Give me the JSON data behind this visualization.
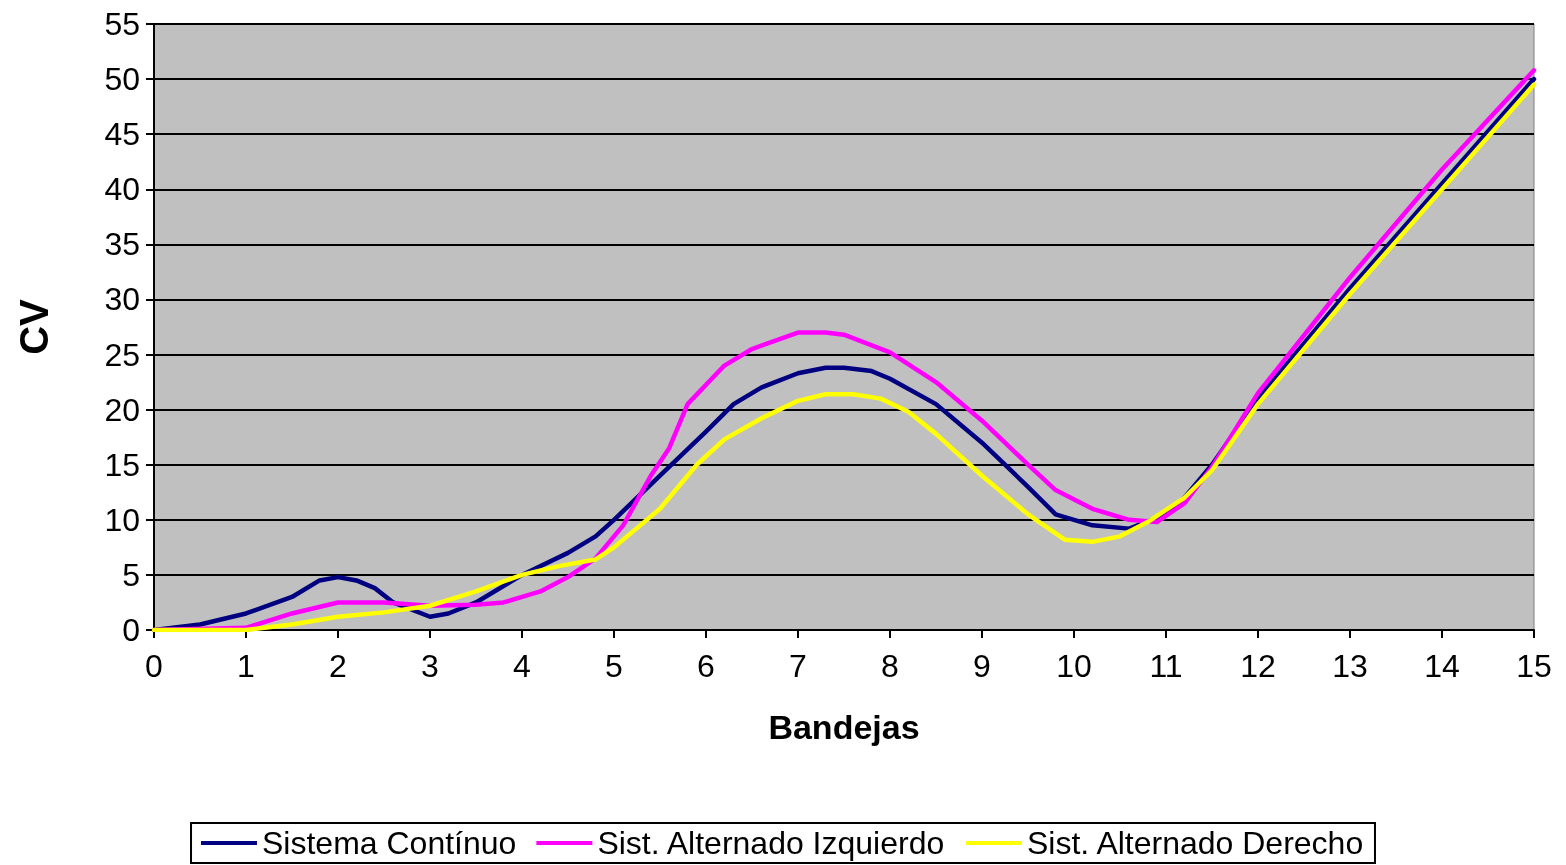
{
  "chart_data": {
    "type": "line",
    "xlabel": "Bandejas",
    "ylabel": "CV",
    "xlim": [
      0,
      15
    ],
    "xticks": [
      0,
      1,
      2,
      3,
      4,
      5,
      6,
      7,
      8,
      9,
      10,
      11,
      12,
      13,
      14,
      15
    ],
    "ylim": [
      0,
      55
    ],
    "yticks": [
      0,
      5,
      10,
      15,
      20,
      25,
      30,
      35,
      40,
      45,
      50,
      55
    ],
    "grid": "y",
    "legend": "bottom",
    "marker": "none",
    "line_style": "solid",
    "series": [
      {
        "name": "Sistema Contínuo",
        "color": "#000080",
        "x": [
          0,
          0.5,
          1,
          1.5,
          1.8,
          2,
          2.2,
          2.4,
          2.6,
          3,
          3.2,
          3.5,
          4,
          4.5,
          4.8,
          5,
          5.5,
          6,
          6.3,
          6.6,
          7,
          7.3,
          7.5,
          7.8,
          8,
          8.5,
          9,
          9.5,
          9.8,
          10.2,
          10.6,
          11,
          11.2,
          11.5,
          12,
          13,
          14,
          15
        ],
        "values": [
          0,
          0.5,
          1.5,
          3,
          4.5,
          4.8,
          4.5,
          3.8,
          2.5,
          1.2,
          1.5,
          2.5,
          5,
          7,
          8.5,
          10,
          14,
          18,
          20.5,
          22,
          23.3,
          23.8,
          23.8,
          23.5,
          22.8,
          20.5,
          17,
          13,
          10.5,
          9.5,
          9.2,
          10.5,
          12,
          15,
          21,
          31,
          40.5,
          50
        ]
      },
      {
        "name": "Sist. Alternado Izquierdo",
        "color": "#ff00ff",
        "x": [
          0,
          1,
          1.5,
          2,
          2.5,
          3,
          3.5,
          3.8,
          4.2,
          4.5,
          4.8,
          5.1,
          5.4,
          5.6,
          5.8,
          6.2,
          6.5,
          7,
          7.3,
          7.5,
          8,
          8.5,
          9,
          9.5,
          9.8,
          10.2,
          10.6,
          10.9,
          11.2,
          11.5,
          12,
          13,
          14,
          15
        ],
        "values": [
          0,
          0.2,
          1.5,
          2.5,
          2.5,
          2.2,
          2.3,
          2.5,
          3.5,
          4.8,
          6.5,
          9.5,
          14,
          16.5,
          20.5,
          24,
          25.5,
          27,
          27,
          26.8,
          25.2,
          22.5,
          19,
          15,
          12.7,
          11,
          10,
          9.8,
          11.5,
          14.8,
          21.5,
          32,
          41.8,
          50.8
        ]
      },
      {
        "name": "Sist. Alternado Derecho",
        "color": "#ffff00",
        "x": [
          0,
          1,
          1.5,
          2,
          2.5,
          3,
          3.5,
          4,
          4.4,
          4.8,
          5,
          5.5,
          5.9,
          6.2,
          6.6,
          7,
          7.3,
          7.6,
          7.9,
          8.2,
          8.5,
          9,
          9.5,
          9.9,
          10.2,
          10.5,
          10.8,
          11.2,
          11.5,
          12,
          13,
          14,
          15
        ],
        "values": [
          0,
          0,
          0.5,
          1.2,
          1.6,
          2.2,
          3.5,
          5,
          5.8,
          6.4,
          7.5,
          11,
          15,
          17.3,
          19.2,
          20.8,
          21.4,
          21.4,
          21,
          19.8,
          17.8,
          14,
          10.5,
          8.2,
          8,
          8.5,
          9.8,
          12,
          14.5,
          20.5,
          30.5,
          40,
          49.5
        ]
      }
    ]
  }
}
